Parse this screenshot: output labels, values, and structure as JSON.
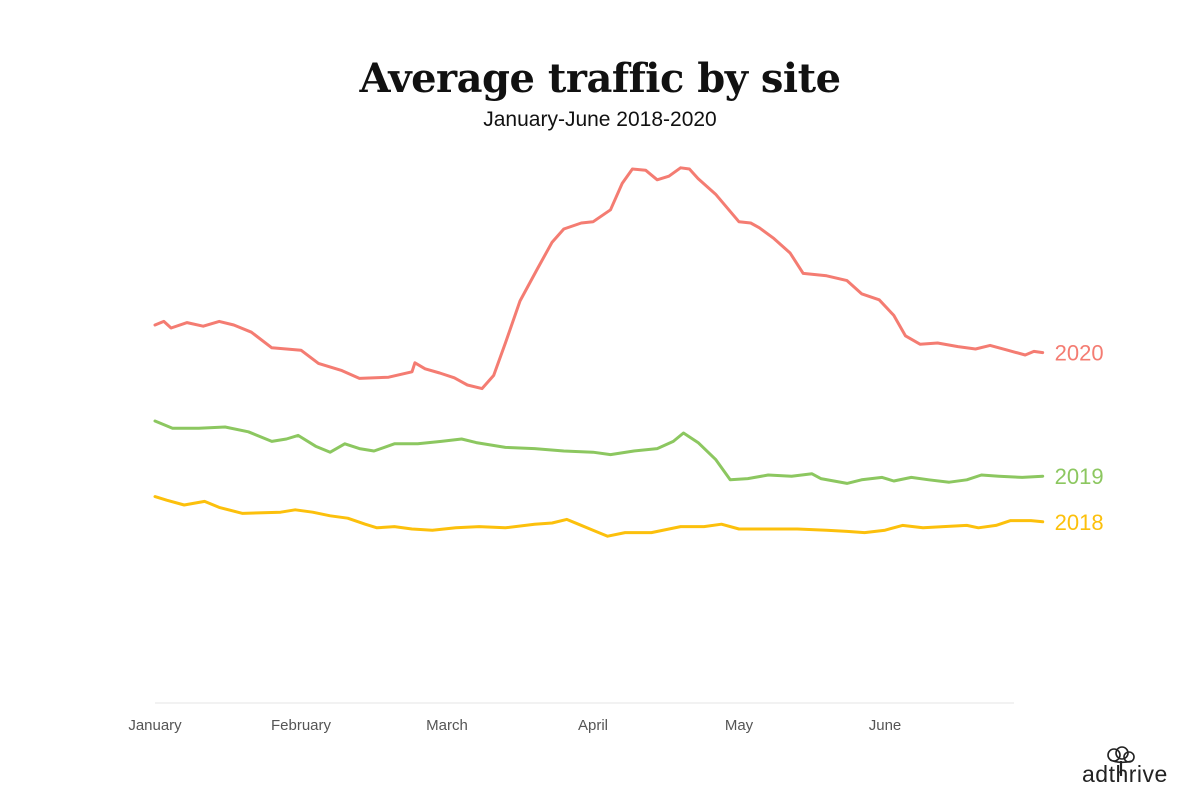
{
  "chart_data": {
    "type": "line",
    "title": "Average traffic by site",
    "subtitle": "January-June 2018-2020",
    "x_labels": [
      "January",
      "February",
      "March",
      "April",
      "May",
      "June"
    ],
    "grid": false,
    "legend": "inline-right",
    "series": [
      {
        "name": "2020",
        "color": "#f47c72",
        "points": [
          [
            0,
            0.63
          ],
          [
            0.06,
            0.636
          ],
          [
            0.11,
            0.625
          ],
          [
            0.22,
            0.634
          ],
          [
            0.33,
            0.628
          ],
          [
            0.44,
            0.636
          ],
          [
            0.54,
            0.63
          ],
          [
            0.66,
            0.618
          ],
          [
            0.8,
            0.592
          ],
          [
            1.0,
            0.588
          ],
          [
            1.12,
            0.566
          ],
          [
            1.28,
            0.554
          ],
          [
            1.4,
            0.541
          ],
          [
            1.6,
            0.543
          ],
          [
            1.76,
            0.552
          ],
          [
            1.78,
            0.567
          ],
          [
            1.85,
            0.557
          ],
          [
            1.95,
            0.55
          ],
          [
            2.05,
            0.542
          ],
          [
            2.14,
            0.53
          ],
          [
            2.24,
            0.524
          ],
          [
            2.32,
            0.546
          ],
          [
            2.4,
            0.6
          ],
          [
            2.5,
            0.67
          ],
          [
            2.62,
            0.724
          ],
          [
            2.72,
            0.768
          ],
          [
            2.8,
            0.79
          ],
          [
            2.92,
            0.8
          ],
          [
            3.0,
            0.802
          ],
          [
            3.12,
            0.822
          ],
          [
            3.2,
            0.866
          ],
          [
            3.27,
            0.89
          ],
          [
            3.36,
            0.888
          ],
          [
            3.44,
            0.872
          ],
          [
            3.52,
            0.878
          ],
          [
            3.6,
            0.892
          ],
          [
            3.66,
            0.89
          ],
          [
            3.72,
            0.874
          ],
          [
            3.84,
            0.848
          ],
          [
            4.0,
            0.802
          ],
          [
            4.08,
            0.8
          ],
          [
            4.14,
            0.792
          ],
          [
            4.24,
            0.774
          ],
          [
            4.35,
            0.75
          ],
          [
            4.44,
            0.716
          ],
          [
            4.6,
            0.712
          ],
          [
            4.74,
            0.704
          ],
          [
            4.84,
            0.682
          ],
          [
            4.96,
            0.672
          ],
          [
            5.06,
            0.646
          ],
          [
            5.14,
            0.612
          ],
          [
            5.24,
            0.598
          ],
          [
            5.36,
            0.6
          ],
          [
            5.5,
            0.594
          ],
          [
            5.62,
            0.59
          ],
          [
            5.72,
            0.596
          ],
          [
            5.84,
            0.588
          ],
          [
            5.96,
            0.58
          ],
          [
            6.02,
            0.586
          ],
          [
            6.08,
            0.584
          ]
        ]
      },
      {
        "name": "2019",
        "color": "#8cc760",
        "points": [
          [
            0,
            0.47
          ],
          [
            0.12,
            0.458
          ],
          [
            0.3,
            0.458
          ],
          [
            0.48,
            0.46
          ],
          [
            0.64,
            0.452
          ],
          [
            0.8,
            0.436
          ],
          [
            0.9,
            0.44
          ],
          [
            0.98,
            0.446
          ],
          [
            1.1,
            0.428
          ],
          [
            1.2,
            0.418
          ],
          [
            1.3,
            0.432
          ],
          [
            1.4,
            0.424
          ],
          [
            1.5,
            0.42
          ],
          [
            1.64,
            0.432
          ],
          [
            1.8,
            0.432
          ],
          [
            1.96,
            0.436
          ],
          [
            2.1,
            0.44
          ],
          [
            2.2,
            0.434
          ],
          [
            2.4,
            0.426
          ],
          [
            2.6,
            0.424
          ],
          [
            2.8,
            0.42
          ],
          [
            3.0,
            0.418
          ],
          [
            3.12,
            0.414
          ],
          [
            3.28,
            0.42
          ],
          [
            3.44,
            0.424
          ],
          [
            3.55,
            0.436
          ],
          [
            3.62,
            0.45
          ],
          [
            3.72,
            0.434
          ],
          [
            3.84,
            0.406
          ],
          [
            3.94,
            0.372
          ],
          [
            4.06,
            0.374
          ],
          [
            4.2,
            0.38
          ],
          [
            4.36,
            0.378
          ],
          [
            4.5,
            0.382
          ],
          [
            4.56,
            0.374
          ],
          [
            4.74,
            0.366
          ],
          [
            4.84,
            0.372
          ],
          [
            4.98,
            0.376
          ],
          [
            5.06,
            0.37
          ],
          [
            5.18,
            0.376
          ],
          [
            5.3,
            0.372
          ],
          [
            5.44,
            0.368
          ],
          [
            5.56,
            0.372
          ],
          [
            5.66,
            0.38
          ],
          [
            5.78,
            0.378
          ],
          [
            5.94,
            0.376
          ],
          [
            6.08,
            0.378
          ]
        ]
      },
      {
        "name": "2018",
        "color": "#fcc00c",
        "points": [
          [
            0,
            0.344
          ],
          [
            0.08,
            0.338
          ],
          [
            0.2,
            0.33
          ],
          [
            0.34,
            0.336
          ],
          [
            0.44,
            0.326
          ],
          [
            0.6,
            0.316
          ],
          [
            0.86,
            0.318
          ],
          [
            0.96,
            0.322
          ],
          [
            1.08,
            0.318
          ],
          [
            1.2,
            0.312
          ],
          [
            1.32,
            0.308
          ],
          [
            1.44,
            0.298
          ],
          [
            1.52,
            0.292
          ],
          [
            1.64,
            0.294
          ],
          [
            1.76,
            0.29
          ],
          [
            1.9,
            0.288
          ],
          [
            2.06,
            0.292
          ],
          [
            2.22,
            0.294
          ],
          [
            2.4,
            0.292
          ],
          [
            2.6,
            0.298
          ],
          [
            2.72,
            0.3
          ],
          [
            2.82,
            0.306
          ],
          [
            2.9,
            0.298
          ],
          [
            3.0,
            0.288
          ],
          [
            3.1,
            0.278
          ],
          [
            3.22,
            0.284
          ],
          [
            3.4,
            0.284
          ],
          [
            3.6,
            0.294
          ],
          [
            3.76,
            0.294
          ],
          [
            3.88,
            0.298
          ],
          [
            4.0,
            0.29
          ],
          [
            4.2,
            0.29
          ],
          [
            4.4,
            0.29
          ],
          [
            4.6,
            0.288
          ],
          [
            4.74,
            0.286
          ],
          [
            4.86,
            0.284
          ],
          [
            5.0,
            0.288
          ],
          [
            5.12,
            0.296
          ],
          [
            5.26,
            0.292
          ],
          [
            5.4,
            0.294
          ],
          [
            5.56,
            0.296
          ],
          [
            5.64,
            0.292
          ],
          [
            5.76,
            0.296
          ],
          [
            5.86,
            0.304
          ],
          [
            6.0,
            0.304
          ],
          [
            6.08,
            0.302
          ]
        ]
      }
    ]
  },
  "logo": {
    "text": "adthrive"
  }
}
